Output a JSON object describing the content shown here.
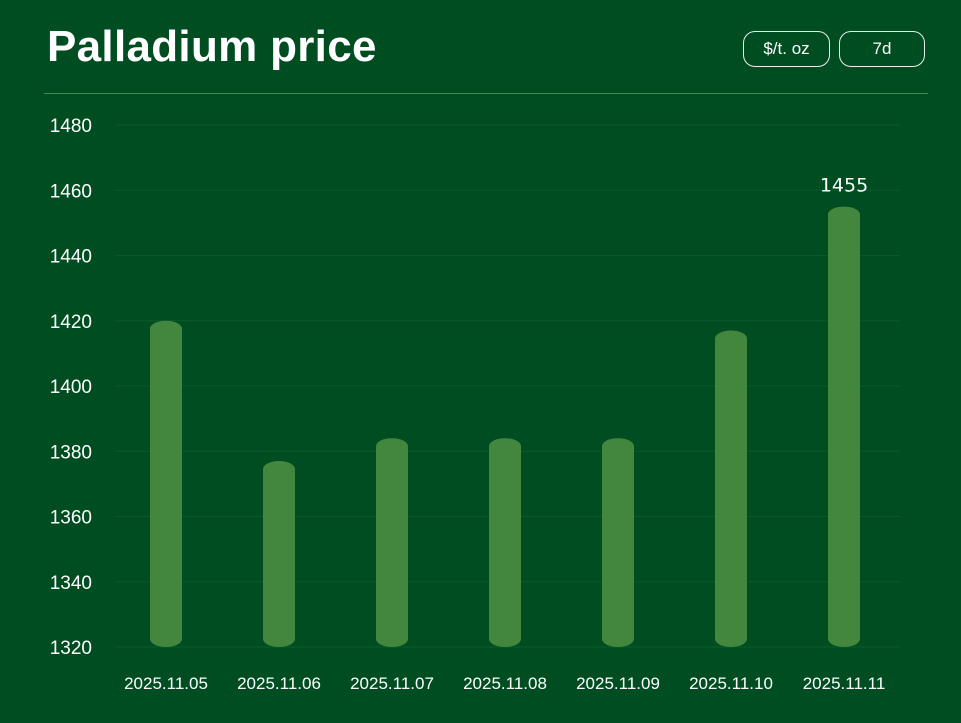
{
  "header": {
    "title": "Palladium price",
    "unit_label": "$/t. oz",
    "range_label": "7d"
  },
  "colors": {
    "background": "#004d22",
    "bar": "#43873f",
    "gridline": "#0a5a2c",
    "text": "#ffffff"
  },
  "chart_data": {
    "type": "bar",
    "categories": [
      "2025.11.05",
      "2025.11.06",
      "2025.11.07",
      "2025.11.08",
      "2025.11.09",
      "2025.11.10",
      "2025.11.11"
    ],
    "values": [
      1420,
      1377,
      1384,
      1384,
      1384,
      1417,
      1455
    ],
    "ylim": [
      1320,
      1480
    ],
    "yticks": [
      1320,
      1340,
      1360,
      1380,
      1400,
      1420,
      1440,
      1460,
      1480
    ],
    "data_labels": [
      null,
      null,
      null,
      null,
      null,
      null,
      "1455"
    ],
    "grid": true
  }
}
